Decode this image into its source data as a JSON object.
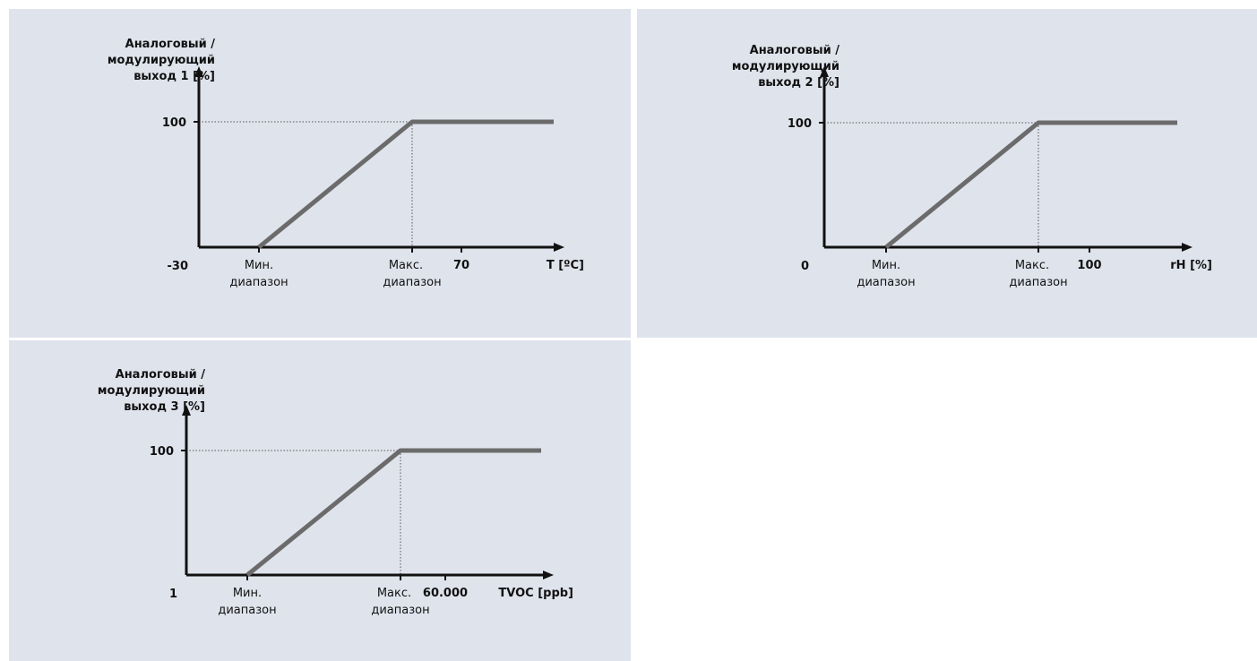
{
  "chart_data": [
    {
      "type": "line",
      "ylabel": [
        "Аналоговый /",
        "модулирующий",
        "выход 1 [%]"
      ],
      "xlabel": "T [ºC]",
      "x_min_label": "-30",
      "x_end_label": "70",
      "y_top_label": "100",
      "range_min_label": [
        "Мин.",
        "диапазон"
      ],
      "range_max_label": [
        "Макс.",
        "диапазон"
      ],
      "series": [
        {
          "x": [
            0,
            1,
            2
          ],
          "y": [
            0,
            100,
            100
          ]
        }
      ],
      "ylim": [
        0,
        100
      ],
      "xlim": [
        -0.5,
        2.5
      ],
      "line_color": "#6b6b6b"
    },
    {
      "type": "line",
      "ylabel": [
        "Аналоговый /",
        "модулирующий",
        "выход 2 [%]"
      ],
      "xlabel": "rH [%]",
      "x_min_label": "0",
      "x_end_label": "100",
      "y_top_label": "100",
      "range_min_label": [
        "Мин.",
        "диапазон"
      ],
      "range_max_label": [
        "Макс.",
        "диапазон"
      ],
      "series": [
        {
          "x": [
            0,
            1,
            2
          ],
          "y": [
            0,
            100,
            100
          ]
        }
      ],
      "ylim": [
        0,
        100
      ],
      "xlim": [
        -0.5,
        2.5
      ],
      "line_color": "#6b6b6b"
    },
    {
      "type": "line",
      "ylabel": [
        "Аналоговый /",
        "модулирующий",
        "выход 3 [%]"
      ],
      "xlabel": "TVOC [ppb]",
      "x_min_label": "1",
      "x_end_label": "60.000",
      "y_top_label": "100",
      "range_min_label": [
        "Мин.",
        "диапазон"
      ],
      "range_max_label": [
        "Макс.",
        "диапазон"
      ],
      "series": [
        {
          "x": [
            0,
            1,
            2
          ],
          "y": [
            0,
            100,
            100
          ]
        }
      ],
      "ylim": [
        0,
        100
      ],
      "xlim": [
        -0.5,
        2.5
      ],
      "line_color": "#6b6b6b"
    }
  ]
}
